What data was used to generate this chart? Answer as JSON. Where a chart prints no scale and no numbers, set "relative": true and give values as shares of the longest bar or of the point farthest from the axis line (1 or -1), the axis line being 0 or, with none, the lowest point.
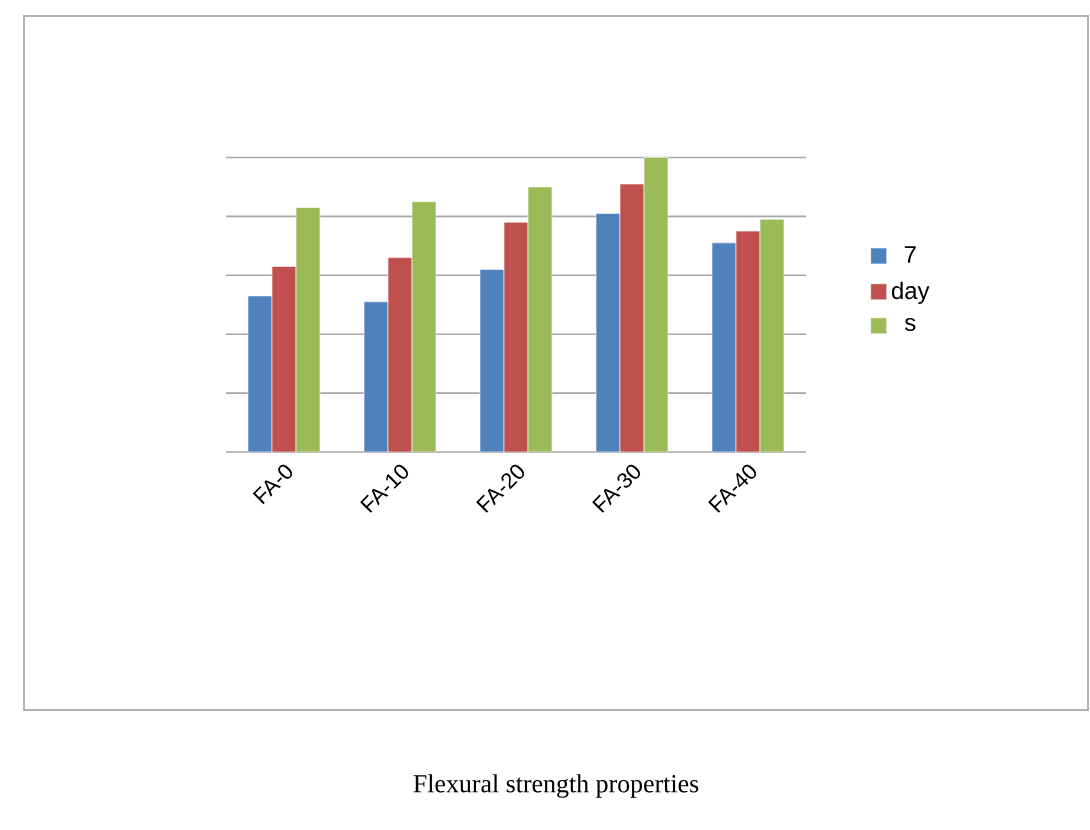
{
  "chart_data": {
    "type": "bar",
    "title": "Flexural strength properties",
    "relative": true,
    "grid": "y",
    "legend": "right",
    "categories": [
      "FA-0",
      "FA-10",
      "FA-20",
      "FA-30",
      "FA-40"
    ],
    "series": [
      {
        "name": "7",
        "color": "#4f81bd",
        "values": [
          0.53,
          0.51,
          0.62,
          0.81,
          0.71
        ]
      },
      {
        "name": "day",
        "color": "#c0504d",
        "values": [
          0.63,
          0.66,
          0.78,
          0.91,
          0.75
        ]
      },
      {
        "name": "s",
        "color": "#9bbb59",
        "values": [
          0.83,
          0.85,
          0.9,
          1,
          0.79
        ]
      }
    ]
  }
}
